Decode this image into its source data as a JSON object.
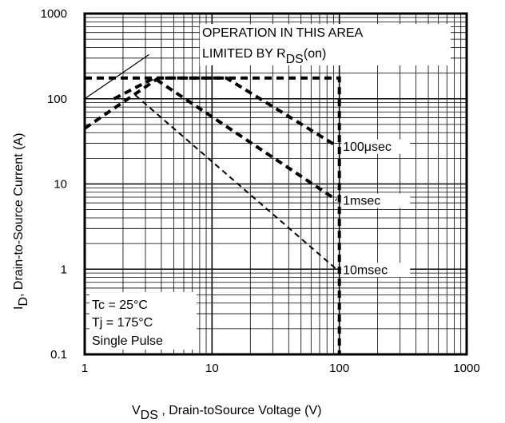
{
  "chart_data": {
    "type": "line",
    "xscale": "log",
    "yscale": "log",
    "xlim": [
      1,
      1000
    ],
    "ylim": [
      0.1,
      1000
    ],
    "grid": true,
    "x_ticks": [
      "1",
      "10",
      "100",
      "1000"
    ],
    "y_ticks": [
      "0.1",
      "1",
      "10",
      "100",
      "1000"
    ],
    "ylabel_main": "I",
    "ylabel_sub": "D",
    "ylabel_rest": ", Drain-to-Source Current (A)",
    "xlabel_main": "V",
    "xlabel_sub": "DS",
    "xlabel_rest": " , Drain-toSource Voltage (V)",
    "annotation_line1": "OPERATION IN THIS AREA",
    "annotation_line2_main": "LIMITED BY R",
    "annotation_line2_sub": "DS",
    "annotation_line2_rest": "(on)",
    "conditions": [
      "Tc = 25°C",
      "Tj = 175°C",
      "Single Pulse"
    ],
    "series": [
      {
        "name": "",
        "style": "solid-thin",
        "points": [
          [
            1,
            100
          ],
          [
            3.2,
            330
          ]
        ]
      },
      {
        "name": "",
        "style": "dashed-heavy",
        "points": [
          [
            1,
            175
          ],
          [
            100,
            175
          ],
          [
            100,
            0.1
          ]
        ]
      },
      {
        "name": "100μsec",
        "style": "dashed-heavy",
        "points": [
          [
            1,
            45
          ],
          [
            3.8,
            175
          ],
          [
            13,
            175
          ],
          [
            95,
            28
          ]
        ]
      },
      {
        "name": "1msec",
        "style": "dashed-heavy",
        "points": [
          [
            1.7,
            100
          ],
          [
            3.5,
            175
          ],
          [
            95,
            6.5
          ]
        ]
      },
      {
        "name": "10msec",
        "style": "dashed-thin",
        "points": [
          [
            2.5,
            110
          ],
          [
            95,
            1.0
          ]
        ]
      }
    ]
  }
}
